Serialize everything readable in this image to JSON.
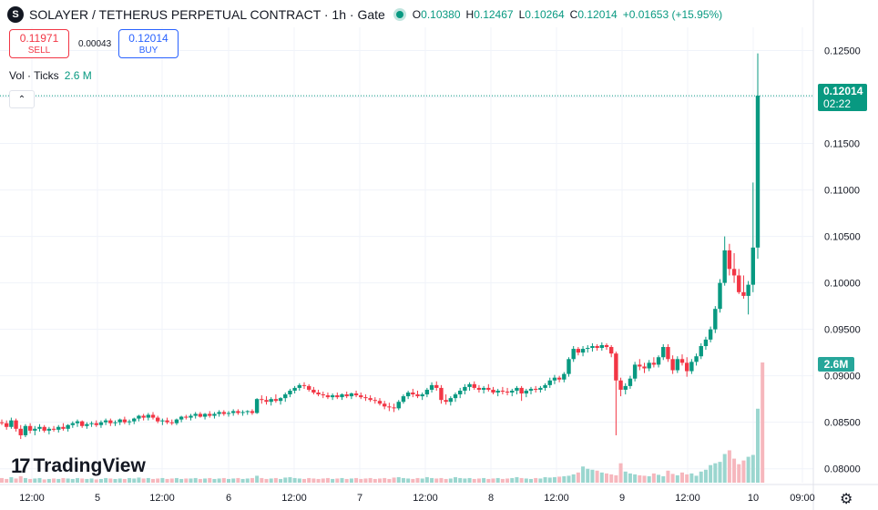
{
  "header": {
    "logo_letter": "S",
    "title": "SOLAYER / TETHERUS PERPETUAL CONTRACT · 1h · Gate",
    "ohlc": [
      {
        "k": "O",
        "v": "0.10380"
      },
      {
        "k": "H",
        "v": "0.12467"
      },
      {
        "k": "L",
        "v": "0.10264"
      },
      {
        "k": "C",
        "v": "0.12014"
      },
      {
        "k": "",
        "v": "+0.01653 (+15.95%)"
      }
    ]
  },
  "trade": {
    "sell_price": "0.11971",
    "sell_label": "SELL",
    "spread": "0.00043",
    "buy_price": "0.12014",
    "buy_label": "BUY"
  },
  "volume_legend": {
    "label": "Vol · Ticks",
    "value": "2.6 M"
  },
  "brand": {
    "name": "TradingView",
    "mark": "17"
  },
  "price_tag": {
    "price": "0.12014",
    "countdown": "02:22"
  },
  "volume_tag": "2.6M",
  "colors": {
    "up": "#089981",
    "down": "#f23645",
    "vol_up": "#9bd6cf",
    "vol_down": "#f6b7bd"
  },
  "icons": {
    "collapse": "chevron-up-icon",
    "settings": "gear-icon"
  },
  "chart_data": {
    "type": "candlestick",
    "x_axis_labels": [
      "12:00",
      "5",
      "12:00",
      "6",
      "12:00",
      "7",
      "12:00",
      "8",
      "12:00",
      "9",
      "12:00",
      "10",
      "09:00"
    ],
    "y_axis_labels": [
      "0.12500",
      "0.12000",
      "0.11500",
      "0.11000",
      "0.10500",
      "0.10000",
      "0.09500",
      "0.09000",
      "0.08500",
      "0.08000"
    ],
    "ylim": [
      0.0785,
      0.1275
    ],
    "last_price": 0.12014,
    "grid": true,
    "candles": [
      {
        "o": 0.085,
        "h": 0.0853,
        "l": 0.0847,
        "c": 0.0849
      },
      {
        "o": 0.0849,
        "h": 0.0852,
        "l": 0.0842,
        "c": 0.0845
      },
      {
        "o": 0.0845,
        "h": 0.0855,
        "l": 0.0843,
        "c": 0.0852
      },
      {
        "o": 0.0852,
        "h": 0.0854,
        "l": 0.084,
        "c": 0.0843
      },
      {
        "o": 0.0843,
        "h": 0.0847,
        "l": 0.0832,
        "c": 0.0836
      },
      {
        "o": 0.0836,
        "h": 0.0848,
        "l": 0.0834,
        "c": 0.0846
      },
      {
        "o": 0.0846,
        "h": 0.0849,
        "l": 0.0838,
        "c": 0.0841
      },
      {
        "o": 0.0841,
        "h": 0.0846,
        "l": 0.0836,
        "c": 0.0843
      },
      {
        "o": 0.0843,
        "h": 0.0848,
        "l": 0.084,
        "c": 0.0845
      },
      {
        "o": 0.0845,
        "h": 0.0847,
        "l": 0.0839,
        "c": 0.0841
      },
      {
        "o": 0.0841,
        "h": 0.0845,
        "l": 0.0837,
        "c": 0.0843
      },
      {
        "o": 0.0843,
        "h": 0.0846,
        "l": 0.084,
        "c": 0.0842
      },
      {
        "o": 0.0842,
        "h": 0.0847,
        "l": 0.0839,
        "c": 0.0845
      },
      {
        "o": 0.0845,
        "h": 0.0849,
        "l": 0.0841,
        "c": 0.0843
      },
      {
        "o": 0.0843,
        "h": 0.0848,
        "l": 0.084,
        "c": 0.0847
      },
      {
        "o": 0.0847,
        "h": 0.0851,
        "l": 0.0844,
        "c": 0.0849
      },
      {
        "o": 0.0849,
        "h": 0.0853,
        "l": 0.0845,
        "c": 0.0851
      },
      {
        "o": 0.0851,
        "h": 0.0852,
        "l": 0.0844,
        "c": 0.0846
      },
      {
        "o": 0.0846,
        "h": 0.085,
        "l": 0.0843,
        "c": 0.0848
      },
      {
        "o": 0.0848,
        "h": 0.0851,
        "l": 0.0845,
        "c": 0.0849
      },
      {
        "o": 0.0849,
        "h": 0.0852,
        "l": 0.0845,
        "c": 0.0847
      },
      {
        "o": 0.0847,
        "h": 0.0852,
        "l": 0.0844,
        "c": 0.085
      },
      {
        "o": 0.085,
        "h": 0.0854,
        "l": 0.0847,
        "c": 0.0852
      },
      {
        "o": 0.0852,
        "h": 0.0854,
        "l": 0.0846,
        "c": 0.0849
      },
      {
        "o": 0.0849,
        "h": 0.0852,
        "l": 0.0846,
        "c": 0.085
      },
      {
        "o": 0.085,
        "h": 0.0854,
        "l": 0.0847,
        "c": 0.0853
      },
      {
        "o": 0.0853,
        "h": 0.0856,
        "l": 0.0848,
        "c": 0.085
      },
      {
        "o": 0.085,
        "h": 0.0853,
        "l": 0.0847,
        "c": 0.0851
      },
      {
        "o": 0.0851,
        "h": 0.0855,
        "l": 0.0848,
        "c": 0.0854
      },
      {
        "o": 0.0854,
        "h": 0.0858,
        "l": 0.0851,
        "c": 0.0857
      },
      {
        "o": 0.0857,
        "h": 0.0859,
        "l": 0.0852,
        "c": 0.0855
      },
      {
        "o": 0.0855,
        "h": 0.086,
        "l": 0.0852,
        "c": 0.0858
      },
      {
        "o": 0.0858,
        "h": 0.0861,
        "l": 0.0853,
        "c": 0.0855
      },
      {
        "o": 0.0855,
        "h": 0.0857,
        "l": 0.0849,
        "c": 0.0851
      },
      {
        "o": 0.0851,
        "h": 0.0854,
        "l": 0.0847,
        "c": 0.0852
      },
      {
        "o": 0.0852,
        "h": 0.0855,
        "l": 0.0848,
        "c": 0.085
      },
      {
        "o": 0.085,
        "h": 0.0853,
        "l": 0.0847,
        "c": 0.0849
      },
      {
        "o": 0.0849,
        "h": 0.0854,
        "l": 0.0847,
        "c": 0.0853
      },
      {
        "o": 0.0853,
        "h": 0.0857,
        "l": 0.085,
        "c": 0.0856
      },
      {
        "o": 0.0856,
        "h": 0.0858,
        "l": 0.0853,
        "c": 0.0855
      },
      {
        "o": 0.0855,
        "h": 0.0859,
        "l": 0.0852,
        "c": 0.0857
      },
      {
        "o": 0.0857,
        "h": 0.0861,
        "l": 0.0854,
        "c": 0.0859
      },
      {
        "o": 0.0859,
        "h": 0.0861,
        "l": 0.0855,
        "c": 0.0856
      },
      {
        "o": 0.0856,
        "h": 0.086,
        "l": 0.0853,
        "c": 0.0859
      },
      {
        "o": 0.0859,
        "h": 0.0862,
        "l": 0.0855,
        "c": 0.0857
      },
      {
        "o": 0.0857,
        "h": 0.0861,
        "l": 0.0854,
        "c": 0.0859
      },
      {
        "o": 0.0859,
        "h": 0.0863,
        "l": 0.0856,
        "c": 0.0861
      },
      {
        "o": 0.0861,
        "h": 0.0863,
        "l": 0.0857,
        "c": 0.0859
      },
      {
        "o": 0.0859,
        "h": 0.0862,
        "l": 0.0856,
        "c": 0.086
      },
      {
        "o": 0.086,
        "h": 0.0864,
        "l": 0.0857,
        "c": 0.0862
      },
      {
        "o": 0.0862,
        "h": 0.0864,
        "l": 0.0858,
        "c": 0.086
      },
      {
        "o": 0.086,
        "h": 0.0863,
        "l": 0.0857,
        "c": 0.0861
      },
      {
        "o": 0.0861,
        "h": 0.0863,
        "l": 0.0858,
        "c": 0.0862
      },
      {
        "o": 0.0862,
        "h": 0.0864,
        "l": 0.0858,
        "c": 0.086
      },
      {
        "o": 0.086,
        "h": 0.0876,
        "l": 0.0859,
        "c": 0.0875
      },
      {
        "o": 0.0875,
        "h": 0.0879,
        "l": 0.087,
        "c": 0.0874
      },
      {
        "o": 0.0874,
        "h": 0.0878,
        "l": 0.0869,
        "c": 0.0872
      },
      {
        "o": 0.0872,
        "h": 0.0877,
        "l": 0.0868,
        "c": 0.0875
      },
      {
        "o": 0.0875,
        "h": 0.088,
        "l": 0.0871,
        "c": 0.0873
      },
      {
        "o": 0.0873,
        "h": 0.0877,
        "l": 0.0869,
        "c": 0.0876
      },
      {
        "o": 0.0876,
        "h": 0.0882,
        "l": 0.0872,
        "c": 0.088
      },
      {
        "o": 0.088,
        "h": 0.0886,
        "l": 0.0877,
        "c": 0.0884
      },
      {
        "o": 0.0884,
        "h": 0.0889,
        "l": 0.0881,
        "c": 0.0887
      },
      {
        "o": 0.0887,
        "h": 0.0892,
        "l": 0.0884,
        "c": 0.089
      },
      {
        "o": 0.089,
        "h": 0.0893,
        "l": 0.0886,
        "c": 0.0889
      },
      {
        "o": 0.0889,
        "h": 0.0891,
        "l": 0.0883,
        "c": 0.0885
      },
      {
        "o": 0.0885,
        "h": 0.0888,
        "l": 0.088,
        "c": 0.0882
      },
      {
        "o": 0.0882,
        "h": 0.0885,
        "l": 0.0878,
        "c": 0.088
      },
      {
        "o": 0.088,
        "h": 0.0883,
        "l": 0.0876,
        "c": 0.0879
      },
      {
        "o": 0.0879,
        "h": 0.0882,
        "l": 0.0875,
        "c": 0.0877
      },
      {
        "o": 0.0877,
        "h": 0.0881,
        "l": 0.0874,
        "c": 0.0879
      },
      {
        "o": 0.0879,
        "h": 0.0882,
        "l": 0.0875,
        "c": 0.0877
      },
      {
        "o": 0.0877,
        "h": 0.0881,
        "l": 0.0874,
        "c": 0.088
      },
      {
        "o": 0.088,
        "h": 0.0883,
        "l": 0.0876,
        "c": 0.0878
      },
      {
        "o": 0.0878,
        "h": 0.0882,
        "l": 0.0875,
        "c": 0.0881
      },
      {
        "o": 0.0881,
        "h": 0.0884,
        "l": 0.0877,
        "c": 0.0879
      },
      {
        "o": 0.0879,
        "h": 0.0882,
        "l": 0.0875,
        "c": 0.0877
      },
      {
        "o": 0.0877,
        "h": 0.088,
        "l": 0.0873,
        "c": 0.0876
      },
      {
        "o": 0.0876,
        "h": 0.0879,
        "l": 0.0872,
        "c": 0.0874
      },
      {
        "o": 0.0874,
        "h": 0.0877,
        "l": 0.087,
        "c": 0.0873
      },
      {
        "o": 0.0873,
        "h": 0.0876,
        "l": 0.0868,
        "c": 0.087
      },
      {
        "o": 0.087,
        "h": 0.0873,
        "l": 0.0864,
        "c": 0.0867
      },
      {
        "o": 0.0867,
        "h": 0.0871,
        "l": 0.0862,
        "c": 0.0866
      },
      {
        "o": 0.0866,
        "h": 0.087,
        "l": 0.0861,
        "c": 0.0865
      },
      {
        "o": 0.0865,
        "h": 0.0874,
        "l": 0.0863,
        "c": 0.0872
      },
      {
        "o": 0.0872,
        "h": 0.088,
        "l": 0.087,
        "c": 0.0878
      },
      {
        "o": 0.0878,
        "h": 0.0884,
        "l": 0.0875,
        "c": 0.0882
      },
      {
        "o": 0.0882,
        "h": 0.0886,
        "l": 0.0877,
        "c": 0.088
      },
      {
        "o": 0.088,
        "h": 0.0884,
        "l": 0.0876,
        "c": 0.0878
      },
      {
        "o": 0.0878,
        "h": 0.0882,
        "l": 0.0874,
        "c": 0.088
      },
      {
        "o": 0.088,
        "h": 0.0887,
        "l": 0.0877,
        "c": 0.0885
      },
      {
        "o": 0.0885,
        "h": 0.0893,
        "l": 0.0882,
        "c": 0.089
      },
      {
        "o": 0.089,
        "h": 0.0894,
        "l": 0.0884,
        "c": 0.0887
      },
      {
        "o": 0.0887,
        "h": 0.089,
        "l": 0.087,
        "c": 0.0874
      },
      {
        "o": 0.0874,
        "h": 0.088,
        "l": 0.0869,
        "c": 0.0872
      },
      {
        "o": 0.0872,
        "h": 0.0878,
        "l": 0.0868,
        "c": 0.0876
      },
      {
        "o": 0.0876,
        "h": 0.0882,
        "l": 0.0872,
        "c": 0.088
      },
      {
        "o": 0.088,
        "h": 0.0887,
        "l": 0.0876,
        "c": 0.0884
      },
      {
        "o": 0.0884,
        "h": 0.0891,
        "l": 0.088,
        "c": 0.0888
      },
      {
        "o": 0.0888,
        "h": 0.0893,
        "l": 0.0884,
        "c": 0.0891
      },
      {
        "o": 0.0891,
        "h": 0.0894,
        "l": 0.0885,
        "c": 0.0887
      },
      {
        "o": 0.0887,
        "h": 0.089,
        "l": 0.0882,
        "c": 0.0885
      },
      {
        "o": 0.0885,
        "h": 0.0889,
        "l": 0.0881,
        "c": 0.0887
      },
      {
        "o": 0.0887,
        "h": 0.0891,
        "l": 0.0883,
        "c": 0.0885
      },
      {
        "o": 0.0885,
        "h": 0.0888,
        "l": 0.088,
        "c": 0.0882
      },
      {
        "o": 0.0882,
        "h": 0.0886,
        "l": 0.0878,
        "c": 0.0884
      },
      {
        "o": 0.0884,
        "h": 0.0888,
        "l": 0.088,
        "c": 0.0883
      },
      {
        "o": 0.0883,
        "h": 0.0887,
        "l": 0.0879,
        "c": 0.0882
      },
      {
        "o": 0.0882,
        "h": 0.0886,
        "l": 0.0878,
        "c": 0.0884
      },
      {
        "o": 0.0884,
        "h": 0.0889,
        "l": 0.088,
        "c": 0.0887
      },
      {
        "o": 0.0887,
        "h": 0.0889,
        "l": 0.0873,
        "c": 0.0881
      },
      {
        "o": 0.0881,
        "h": 0.0886,
        "l": 0.0877,
        "c": 0.0884
      },
      {
        "o": 0.0884,
        "h": 0.0888,
        "l": 0.088,
        "c": 0.0886
      },
      {
        "o": 0.0886,
        "h": 0.0889,
        "l": 0.0882,
        "c": 0.0885
      },
      {
        "o": 0.0885,
        "h": 0.0889,
        "l": 0.0882,
        "c": 0.0887
      },
      {
        "o": 0.0887,
        "h": 0.0892,
        "l": 0.0884,
        "c": 0.089
      },
      {
        "o": 0.089,
        "h": 0.0898,
        "l": 0.0887,
        "c": 0.0895
      },
      {
        "o": 0.0895,
        "h": 0.0901,
        "l": 0.0891,
        "c": 0.0898
      },
      {
        "o": 0.0898,
        "h": 0.09,
        "l": 0.0893,
        "c": 0.0896
      },
      {
        "o": 0.0896,
        "h": 0.0904,
        "l": 0.0893,
        "c": 0.0902
      },
      {
        "o": 0.0902,
        "h": 0.092,
        "l": 0.0899,
        "c": 0.0918
      },
      {
        "o": 0.0918,
        "h": 0.0932,
        "l": 0.0915,
        "c": 0.0929
      },
      {
        "o": 0.0929,
        "h": 0.0931,
        "l": 0.0922,
        "c": 0.0925
      },
      {
        "o": 0.0925,
        "h": 0.0932,
        "l": 0.0921,
        "c": 0.0929
      },
      {
        "o": 0.0929,
        "h": 0.0933,
        "l": 0.0925,
        "c": 0.093
      },
      {
        "o": 0.093,
        "h": 0.0935,
        "l": 0.0926,
        "c": 0.0932
      },
      {
        "o": 0.0932,
        "h": 0.0934,
        "l": 0.0927,
        "c": 0.093
      },
      {
        "o": 0.093,
        "h": 0.0936,
        "l": 0.0927,
        "c": 0.0933
      },
      {
        "o": 0.0933,
        "h": 0.0935,
        "l": 0.0928,
        "c": 0.0931
      },
      {
        "o": 0.0931,
        "h": 0.0933,
        "l": 0.092,
        "c": 0.0924
      },
      {
        "o": 0.0924,
        "h": 0.0926,
        "l": 0.0836,
        "c": 0.0895
      },
      {
        "o": 0.0895,
        "h": 0.0898,
        "l": 0.0878,
        "c": 0.0885
      },
      {
        "o": 0.0885,
        "h": 0.0892,
        "l": 0.088,
        "c": 0.0889
      },
      {
        "o": 0.0889,
        "h": 0.09,
        "l": 0.0886,
        "c": 0.0897
      },
      {
        "o": 0.0897,
        "h": 0.0915,
        "l": 0.0894,
        "c": 0.0912
      },
      {
        "o": 0.0912,
        "h": 0.0918,
        "l": 0.0906,
        "c": 0.091
      },
      {
        "o": 0.091,
        "h": 0.0914,
        "l": 0.0903,
        "c": 0.0908
      },
      {
        "o": 0.0908,
        "h": 0.0917,
        "l": 0.0905,
        "c": 0.0914
      },
      {
        "o": 0.0914,
        "h": 0.092,
        "l": 0.0909,
        "c": 0.0912
      },
      {
        "o": 0.0912,
        "h": 0.0922,
        "l": 0.0909,
        "c": 0.092
      },
      {
        "o": 0.092,
        "h": 0.0934,
        "l": 0.0917,
        "c": 0.0931
      },
      {
        "o": 0.0931,
        "h": 0.0934,
        "l": 0.0915,
        "c": 0.0918
      },
      {
        "o": 0.0918,
        "h": 0.0922,
        "l": 0.0902,
        "c": 0.0906
      },
      {
        "o": 0.0906,
        "h": 0.0921,
        "l": 0.0903,
        "c": 0.0918
      },
      {
        "o": 0.0918,
        "h": 0.0923,
        "l": 0.0911,
        "c": 0.0914
      },
      {
        "o": 0.0914,
        "h": 0.092,
        "l": 0.0899,
        "c": 0.0905
      },
      {
        "o": 0.0905,
        "h": 0.0918,
        "l": 0.0902,
        "c": 0.0915
      },
      {
        "o": 0.0915,
        "h": 0.0924,
        "l": 0.0911,
        "c": 0.0921
      },
      {
        "o": 0.0921,
        "h": 0.0935,
        "l": 0.0918,
        "c": 0.0932
      },
      {
        "o": 0.0932,
        "h": 0.0942,
        "l": 0.0928,
        "c": 0.0939
      },
      {
        "o": 0.0939,
        "h": 0.0953,
        "l": 0.0936,
        "c": 0.095
      },
      {
        "o": 0.095,
        "h": 0.0975,
        "l": 0.0946,
        "c": 0.0972
      },
      {
        "o": 0.0972,
        "h": 0.1004,
        "l": 0.0968,
        "c": 0.1
      },
      {
        "o": 0.1,
        "h": 0.105,
        "l": 0.0997,
        "c": 0.1035
      },
      {
        "o": 0.1035,
        "h": 0.1042,
        "l": 0.1008,
        "c": 0.1015
      },
      {
        "o": 0.1015,
        "h": 0.1032,
        "l": 0.1,
        "c": 0.1008
      },
      {
        "o": 0.1008,
        "h": 0.1015,
        "l": 0.0988,
        "c": 0.099
      },
      {
        "o": 0.099,
        "h": 0.1008,
        "l": 0.0983,
        "c": 0.0986
      },
      {
        "o": 0.0986,
        "h": 0.1002,
        "l": 0.0966,
        "c": 0.0998
      },
      {
        "o": 0.0998,
        "h": 0.1108,
        "l": 0.099,
        "c": 0.1038
      },
      {
        "o": 0.1038,
        "h": 0.1247,
        "l": 0.1026,
        "c": 0.12014
      }
    ],
    "volume": [
      0.1,
      0.08,
      0.12,
      0.09,
      0.14,
      0.1,
      0.08,
      0.09,
      0.1,
      0.07,
      0.08,
      0.09,
      0.08,
      0.1,
      0.09,
      0.08,
      0.1,
      0.09,
      0.08,
      0.09,
      0.07,
      0.08,
      0.1,
      0.09,
      0.08,
      0.09,
      0.08,
      0.1,
      0.09,
      0.11,
      0.09,
      0.1,
      0.08,
      0.09,
      0.1,
      0.08,
      0.09,
      0.1,
      0.08,
      0.09,
      0.09,
      0.1,
      0.08,
      0.09,
      0.1,
      0.08,
      0.09,
      0.1,
      0.08,
      0.09,
      0.1,
      0.08,
      0.09,
      0.1,
      0.15,
      0.1,
      0.08,
      0.09,
      0.1,
      0.08,
      0.11,
      0.12,
      0.1,
      0.09,
      0.08,
      0.1,
      0.09,
      0.08,
      0.09,
      0.1,
      0.08,
      0.09,
      0.1,
      0.08,
      0.09,
      0.1,
      0.08,
      0.09,
      0.1,
      0.08,
      0.09,
      0.1,
      0.08,
      0.11,
      0.12,
      0.1,
      0.09,
      0.08,
      0.1,
      0.09,
      0.12,
      0.1,
      0.09,
      0.1,
      0.08,
      0.09,
      0.12,
      0.1,
      0.09,
      0.1,
      0.08,
      0.09,
      0.1,
      0.08,
      0.09,
      0.1,
      0.08,
      0.09,
      0.1,
      0.12,
      0.1,
      0.09,
      0.08,
      0.1,
      0.09,
      0.12,
      0.11,
      0.12,
      0.13,
      0.14,
      0.15,
      0.18,
      0.22,
      0.35,
      0.3,
      0.28,
      0.26,
      0.22,
      0.2,
      0.18,
      0.16,
      0.42,
      0.24,
      0.2,
      0.18,
      0.16,
      0.15,
      0.14,
      0.2,
      0.17,
      0.14,
      0.26,
      0.19,
      0.16,
      0.22,
      0.18,
      0.2,
      0.15,
      0.24,
      0.28,
      0.38,
      0.42,
      0.45,
      0.62,
      0.7,
      0.52,
      0.4,
      0.48,
      0.56,
      0.6,
      1.6,
      2.6
    ],
    "volume_max": 2.6
  }
}
